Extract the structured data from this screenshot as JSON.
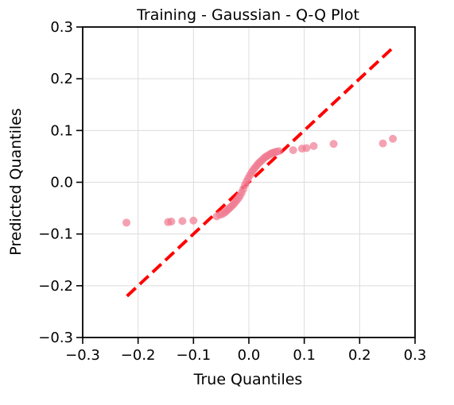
{
  "chart_data": {
    "type": "scatter",
    "title": "Training - Gaussian - Q-Q Plot",
    "xlabel": "True Quantiles",
    "ylabel": "Predicted Quantiles",
    "xlim": [
      -0.3,
      0.3
    ],
    "ylim": [
      -0.3,
      0.3
    ],
    "xticks": [
      -0.3,
      -0.2,
      -0.1,
      0.0,
      0.1,
      0.2,
      0.3
    ],
    "yticks": [
      -0.3,
      -0.2,
      -0.1,
      0.0,
      0.1,
      0.2,
      0.3
    ],
    "xtick_labels": [
      "−0.3",
      "−0.2",
      "−0.1",
      "0.0",
      "0.1",
      "0.2",
      "0.3"
    ],
    "ytick_labels": [
      "−0.3",
      "−0.2",
      "−0.1",
      "0.0",
      "0.1",
      "0.2",
      "0.3"
    ],
    "grid": true,
    "point_color": "#f07a92",
    "reference_line": {
      "color": "#ff0000",
      "style": "dashed",
      "x": [
        -0.22,
        0.26
      ],
      "y": [
        -0.22,
        0.26
      ]
    },
    "points": {
      "x": [
        -0.221,
        -0.146,
        -0.14,
        -0.12,
        -0.1,
        -0.058,
        -0.052,
        -0.047,
        -0.043,
        -0.04,
        -0.037,
        -0.034,
        -0.031,
        -0.028,
        -0.025,
        -0.022,
        -0.019,
        -0.016,
        -0.013,
        -0.01,
        -0.007,
        -0.004,
        -0.001,
        0.002,
        0.005,
        0.008,
        0.011,
        0.014,
        0.017,
        0.02,
        0.023,
        0.026,
        0.029,
        0.032,
        0.035,
        0.038,
        0.041,
        0.044,
        0.047,
        0.05,
        0.054,
        0.08,
        0.096,
        0.104,
        0.117,
        0.153,
        0.242,
        0.26
      ],
      "y": [
        -0.078,
        -0.077,
        -0.076,
        -0.075,
        -0.074,
        -0.066,
        -0.063,
        -0.061,
        -0.058,
        -0.055,
        -0.052,
        -0.049,
        -0.046,
        -0.043,
        -0.039,
        -0.035,
        -0.031,
        -0.026,
        -0.02,
        -0.013,
        -0.005,
        0.002,
        0.008,
        0.014,
        0.019,
        0.024,
        0.028,
        0.032,
        0.036,
        0.039,
        0.042,
        0.045,
        0.048,
        0.05,
        0.052,
        0.054,
        0.056,
        0.057,
        0.058,
        0.059,
        0.06,
        0.062,
        0.065,
        0.066,
        0.07,
        0.074,
        0.075,
        0.084
      ]
    }
  }
}
